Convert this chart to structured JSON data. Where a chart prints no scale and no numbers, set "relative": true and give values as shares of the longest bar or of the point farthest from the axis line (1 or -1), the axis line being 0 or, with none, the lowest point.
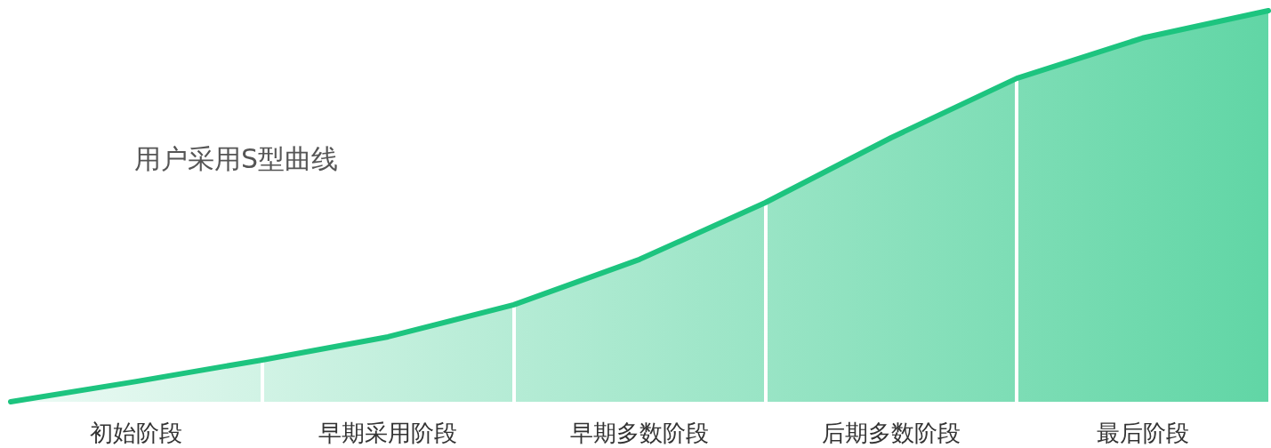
{
  "chart_data": {
    "type": "area",
    "title": "用户采用S型曲线",
    "relative": true,
    "grid": "x",
    "marker": "none",
    "line_style": "solid",
    "categories": [
      null,
      "初始阶段",
      null,
      "早期采用阶段",
      null,
      "早期多数阶段",
      null,
      "后期多数阶段",
      null,
      "最后阶段",
      null
    ],
    "series": [
      {
        "color": "#1dc47f",
        "values": [
          0,
          0.052,
          0.107,
          0.166,
          0.248,
          0.364,
          0.509,
          0.675,
          0.827,
          0.93,
          1.0
        ]
      }
    ]
  }
}
